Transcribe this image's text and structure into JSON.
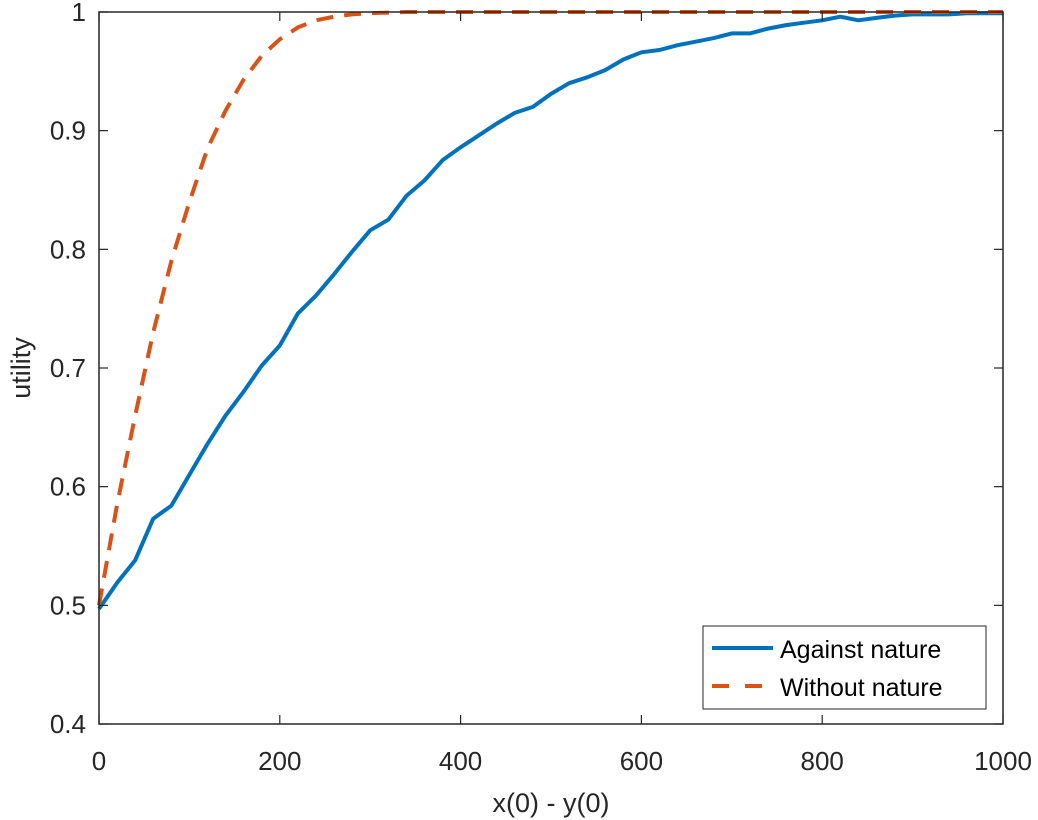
{
  "chart_data": {
    "type": "line",
    "title": "",
    "xlabel": "x(0) - y(0)",
    "ylabel": "utility",
    "xlim": [
      0,
      1000
    ],
    "ylim": [
      0.4,
      1
    ],
    "xticks": [
      0,
      200,
      400,
      600,
      800,
      1000
    ],
    "yticks": [
      0.4,
      0.5,
      0.6,
      0.7,
      0.8,
      0.9,
      1
    ],
    "xtick_labels": [
      "0",
      "200",
      "400",
      "600",
      "800",
      "1000"
    ],
    "ytick_labels": [
      "0.4",
      "0.5",
      "0.6",
      "0.7",
      "0.8",
      "0.9",
      "1"
    ],
    "grid": false,
    "legend_position": "southeast",
    "series": [
      {
        "name": "Against nature",
        "color": "#0072BD",
        "style": "solid",
        "x": [
          0,
          20,
          40,
          60,
          80,
          100,
          120,
          140,
          160,
          180,
          200,
          220,
          240,
          260,
          280,
          300,
          320,
          340,
          360,
          380,
          400,
          420,
          440,
          460,
          480,
          500,
          520,
          540,
          560,
          580,
          600,
          620,
          640,
          660,
          680,
          700,
          720,
          740,
          760,
          780,
          800,
          820,
          840,
          860,
          880,
          900,
          920,
          940,
          960,
          980,
          1000
        ],
        "values": [
          0.497,
          0.519,
          0.538,
          0.573,
          0.584,
          0.61,
          0.636,
          0.66,
          0.68,
          0.702,
          0.719,
          0.746,
          0.761,
          0.779,
          0.798,
          0.816,
          0.825,
          0.845,
          0.858,
          0.875,
          0.886,
          0.896,
          0.906,
          0.915,
          0.92,
          0.931,
          0.94,
          0.945,
          0.951,
          0.96,
          0.966,
          0.968,
          0.972,
          0.975,
          0.978,
          0.982,
          0.982,
          0.986,
          0.989,
          0.991,
          0.993,
          0.996,
          0.993,
          0.995,
          0.997,
          0.998,
          0.998,
          0.998,
          0.999,
          0.999,
          0.999
        ]
      },
      {
        "name": "Without nature",
        "color": "#D95319",
        "style": "dashed",
        "x": [
          0,
          20,
          40,
          60,
          80,
          100,
          120,
          140,
          160,
          180,
          200,
          220,
          240,
          260,
          280,
          300,
          320,
          340,
          360,
          380,
          400,
          450,
          500,
          550,
          600,
          650,
          700,
          750,
          800,
          850,
          900,
          950,
          1000
        ],
        "values": [
          0.5,
          0.585,
          0.66,
          0.73,
          0.79,
          0.84,
          0.885,
          0.917,
          0.943,
          0.963,
          0.977,
          0.987,
          0.993,
          0.996,
          0.998,
          0.999,
          0.9995,
          1.0,
          1.0,
          1.0,
          1.0,
          1.0,
          1.0,
          1.0,
          1.0,
          1.0,
          1.0,
          1.0,
          1.0,
          1.0,
          1.0,
          1.0,
          1.0
        ]
      }
    ]
  },
  "legend": {
    "items": [
      {
        "label": "Against nature"
      },
      {
        "label": "Without nature"
      }
    ]
  },
  "colors": {
    "axis": "#262626",
    "series1": "#0072BD",
    "series2": "#D95319"
  }
}
